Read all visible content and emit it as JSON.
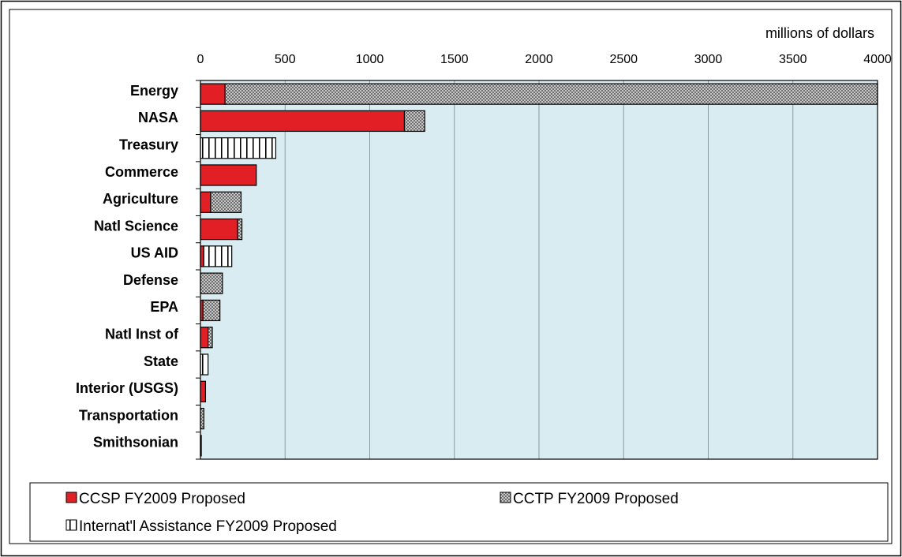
{
  "chart_data": {
    "type": "bar",
    "orientation": "horizontal",
    "stacked": true,
    "unit_label": "millions of dollars",
    "xlim": [
      0,
      4000
    ],
    "xticks": [
      0,
      500,
      1000,
      1500,
      2000,
      2500,
      3000,
      3500,
      4000
    ],
    "grid": true,
    "legend_position": "bottom",
    "categories": [
      "Energy",
      "NASA",
      "Treasury",
      "Commerce",
      "Agriculture",
      "Natl Science",
      "US AID",
      "Defense",
      "EPA",
      "Natl Inst of",
      "State",
      "Interior (USGS)",
      "Transportation",
      "Smithsonian"
    ],
    "series": [
      {
        "name": "CCSP FY2009 Proposed",
        "values": [
          145,
          1205,
          0,
          330,
          60,
          220,
          20,
          0,
          15,
          45,
          0,
          30,
          0,
          5
        ]
      },
      {
        "name": "CCTP FY2009 Proposed",
        "values": [
          3855,
          120,
          0,
          0,
          180,
          25,
          0,
          130,
          100,
          25,
          0,
          0,
          20,
          0
        ]
      },
      {
        "name": "Internat'l Assistance FY2009 Proposed",
        "values": [
          0,
          0,
          445,
          0,
          0,
          0,
          165,
          0,
          0,
          0,
          45,
          0,
          0,
          0
        ]
      }
    ]
  },
  "colors": {
    "plot_background": "#d8ecf2",
    "ccsp": "#e31f26",
    "cctp_fill": "#c8c8c8",
    "cctp_dot": "#6e6e6e",
    "intl_fill": "#ffffff",
    "gridline": "#8a9aa0",
    "outline": "#000000"
  }
}
